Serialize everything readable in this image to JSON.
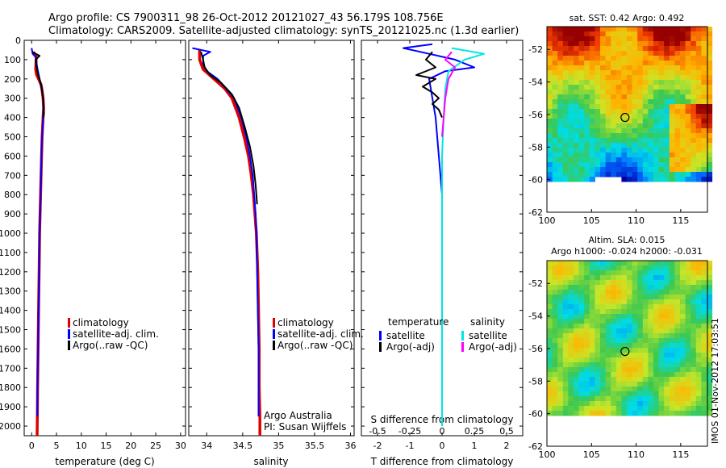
{
  "figure": {
    "title_line1": "Argo profile: CS 7900311_98 26-Oct-2012 20121027_43 56.179S 108.756E",
    "title_line2": "Climatology: CARS2009. Satellite-adjusted climatology: synTS_20121025.nc (1.3d earlier)",
    "vertical_stamp": "IMOS 01-Nov-2012 17:03:51",
    "colors": {
      "climatology": "#e00000",
      "satellite": "#0000ff",
      "argo": "#000000",
      "salinity_satellite": "#00e5e5",
      "salinity_argo": "#ff00ff"
    }
  },
  "chart_data": [
    {
      "id": "temperature",
      "type": "line",
      "xlabel": "temperature (deg C)",
      "ylabel": "",
      "xlim": [
        -1.5,
        31
      ],
      "ylim": [
        2050,
        0
      ],
      "xticks": [
        0,
        5,
        10,
        15,
        20,
        25,
        30
      ],
      "yticks": [
        0,
        100,
        200,
        300,
        400,
        500,
        600,
        700,
        800,
        900,
        1000,
        1100,
        1200,
        1300,
        1400,
        1500,
        1600,
        1700,
        1800,
        1900,
        2000
      ],
      "legend": {
        "position": "lower-right",
        "entries": [
          "climatology",
          "satellite-adj. clim.",
          "Argo(..raw -QC)"
        ]
      },
      "series": [
        {
          "name": "climatology",
          "color": "#e00000",
          "points": [
            [
              0.3,
              60
            ],
            [
              0.9,
              80
            ],
            [
              0.9,
              100
            ],
            [
              0.8,
              150
            ],
            [
              1.0,
              180
            ],
            [
              1.4,
              200
            ],
            [
              1.9,
              230
            ],
            [
              2.1,
              260
            ],
            [
              2.3,
              300
            ],
            [
              2.4,
              350
            ],
            [
              2.3,
              400
            ],
            [
              2.1,
              500
            ],
            [
              2.0,
              600
            ],
            [
              1.9,
              700
            ],
            [
              1.8,
              800
            ],
            [
              1.7,
              900
            ],
            [
              1.6,
              1000
            ],
            [
              1.5,
              1200
            ],
            [
              1.4,
              1400
            ],
            [
              1.3,
              1600
            ],
            [
              1.2,
              1800
            ],
            [
              1.15,
              1950
            ],
            [
              1.1,
              2050
            ]
          ]
        },
        {
          "name": "satellite-adj. clim.",
          "color": "#0000ff",
          "points": [
            [
              0.0,
              40
            ],
            [
              0.2,
              70
            ],
            [
              0.9,
              90
            ],
            [
              1.0,
              120
            ],
            [
              1.2,
              150
            ],
            [
              1.6,
              200
            ],
            [
              2.0,
              250
            ],
            [
              2.3,
              300
            ],
            [
              2.4,
              350
            ],
            [
              2.3,
              400
            ],
            [
              2.1,
              500
            ],
            [
              2.0,
              600
            ],
            [
              1.9,
              700
            ],
            [
              1.8,
              800
            ],
            [
              1.7,
              900
            ],
            [
              1.6,
              1000
            ],
            [
              1.5,
              1200
            ],
            [
              1.4,
              1400
            ],
            [
              1.3,
              1600
            ],
            [
              1.2,
              1800
            ],
            [
              1.15,
              1950
            ]
          ]
        },
        {
          "name": "Argo(..raw -QC)",
          "color": "#000000",
          "points": [
            [
              0.1,
              60
            ],
            [
              1.6,
              80
            ],
            [
              0.8,
              100
            ],
            [
              1.0,
              140
            ],
            [
              1.3,
              180
            ],
            [
              1.7,
              210
            ],
            [
              2.0,
              240
            ],
            [
              2.2,
              280
            ],
            [
              2.4,
              320
            ],
            [
              2.5,
              380
            ],
            [
              2.3,
              400
            ]
          ]
        }
      ]
    },
    {
      "id": "salinity",
      "type": "line",
      "xlabel": "salinity",
      "ylabel": "",
      "xlim": [
        33.75,
        36.05
      ],
      "ylim": [
        2050,
        0
      ],
      "xticks": [
        34,
        34.5,
        35,
        35.5,
        36
      ],
      "xticklabels": [
        "34",
        "34.5",
        "35",
        "35.5",
        "36"
      ],
      "legend": {
        "position": "lower-right",
        "entries": [
          "climatology",
          "satellite-adj. clim.",
          "Argo(..raw -QC)"
        ]
      },
      "annotations": [
        "Argo Australia",
        "PI: Susan Wijffels"
      ],
      "series": [
        {
          "name": "climatology",
          "color": "#e00000",
          "points": [
            [
              33.9,
              50
            ],
            [
              33.9,
              100
            ],
            [
              33.95,
              150
            ],
            [
              34.1,
              200
            ],
            [
              34.25,
              250
            ],
            [
              34.35,
              300
            ],
            [
              34.45,
              400
            ],
            [
              34.52,
              500
            ],
            [
              34.58,
              600
            ],
            [
              34.62,
              700
            ],
            [
              34.65,
              800
            ],
            [
              34.67,
              900
            ],
            [
              34.69,
              1000
            ],
            [
              34.71,
              1200
            ],
            [
              34.72,
              1400
            ],
            [
              34.73,
              1600
            ],
            [
              34.73,
              1800
            ],
            [
              34.74,
              1950
            ],
            [
              34.74,
              2050
            ]
          ]
        },
        {
          "name": "satellite-adj. clim.",
          "color": "#0000ff",
          "points": [
            [
              33.8,
              40
            ],
            [
              34.05,
              60
            ],
            [
              33.95,
              80
            ],
            [
              33.95,
              120
            ],
            [
              34.0,
              160
            ],
            [
              34.15,
              200
            ],
            [
              34.27,
              250
            ],
            [
              34.38,
              300
            ],
            [
              34.48,
              400
            ],
            [
              34.55,
              500
            ],
            [
              34.6,
              600
            ],
            [
              34.64,
              700
            ],
            [
              34.66,
              800
            ],
            [
              34.68,
              900
            ],
            [
              34.69,
              1000
            ],
            [
              34.7,
              1200
            ],
            [
              34.71,
              1400
            ],
            [
              34.72,
              1600
            ],
            [
              34.72,
              1800
            ],
            [
              34.72,
              1950
            ]
          ]
        },
        {
          "name": "Argo(..raw -QC)",
          "color": "#000000",
          "points": [
            [
              33.92,
              60
            ],
            [
              33.95,
              100
            ],
            [
              33.97,
              140
            ],
            [
              34.05,
              180
            ],
            [
              34.2,
              220
            ],
            [
              34.35,
              280
            ],
            [
              34.45,
              350
            ],
            [
              34.53,
              450
            ],
            [
              34.6,
              550
            ],
            [
              34.65,
              650
            ],
            [
              34.68,
              750
            ],
            [
              34.7,
              850
            ]
          ]
        }
      ]
    },
    {
      "id": "differences",
      "type": "line",
      "xlabel": "T difference from climatology",
      "top_axis_label": "S difference from climatology",
      "ylabel": "",
      "xlim": [
        -2.5,
        2.5
      ],
      "ylim": [
        2050,
        0
      ],
      "xticks": [
        -2,
        -1,
        0,
        1,
        2
      ],
      "top_xticklabels": [
        "-0.5",
        "-0.25",
        "0",
        "0.25",
        "0.5"
      ],
      "legend": {
        "position": "lower",
        "groups": [
          {
            "title": "temperature",
            "entries": [
              "satellite",
              "Argo(-adj)"
            ]
          },
          {
            "title": "salinity",
            "entries": [
              "satellite",
              "Argo(-adj)"
            ]
          }
        ]
      },
      "series": [
        {
          "name": "temperature satellite",
          "color": "#0000ff",
          "points": [
            [
              -0.3,
              20
            ],
            [
              -1.2,
              40
            ],
            [
              -0.4,
              70
            ],
            [
              0.4,
              100
            ],
            [
              1.0,
              140
            ],
            [
              0.1,
              160
            ],
            [
              -0.4,
              200
            ],
            [
              -0.3,
              300
            ],
            [
              -0.2,
              400
            ],
            [
              -0.1,
              600
            ],
            [
              0.0,
              800
            ],
            [
              0.0,
              1200
            ],
            [
              0.0,
              1600
            ],
            [
              0.0,
              2000
            ]
          ]
        },
        {
          "name": "temperature Argo(-adj)",
          "color": "#000000",
          "points": [
            [
              -0.3,
              60
            ],
            [
              -0.5,
              100
            ],
            [
              -0.2,
              140
            ],
            [
              -0.8,
              180
            ],
            [
              -0.2,
              200
            ],
            [
              -0.6,
              240
            ],
            [
              -0.3,
              270
            ],
            [
              -0.1,
              300
            ],
            [
              -0.3,
              330
            ],
            [
              -0.1,
              360
            ],
            [
              0.0,
              400
            ]
          ]
        },
        {
          "name": "salinity satellite",
          "color": "#00e5e5",
          "points": [
            [
              0.3,
              40
            ],
            [
              1.3,
              70
            ],
            [
              0.7,
              100
            ],
            [
              0.2,
              160
            ],
            [
              0.1,
              250
            ],
            [
              0.05,
              400
            ],
            [
              0.0,
              600
            ],
            [
              0.0,
              1000
            ],
            [
              0.0,
              1500
            ],
            [
              0.0,
              2000
            ]
          ]
        },
        {
          "name": "salinity Argo(-adj)",
          "color": "#ff00ff",
          "points": [
            [
              0.3,
              60
            ],
            [
              0.1,
              100
            ],
            [
              0.4,
              140
            ],
            [
              0.2,
              200
            ],
            [
              0.1,
              300
            ],
            [
              0.05,
              400
            ],
            [
              0.0,
              500
            ]
          ]
        }
      ]
    },
    {
      "id": "sst_map",
      "type": "heatmap",
      "title": "sat. SST: 0.42 Argo: 0.492",
      "xlim": [
        100,
        118
      ],
      "ylim": [
        -62,
        -50.6
      ],
      "xticks": [
        100,
        105,
        110,
        115
      ],
      "yticks": [
        -52,
        -54,
        -56,
        -58,
        -60,
        -62
      ],
      "marker": {
        "lon": 108.756,
        "lat": -56.179,
        "shape": "circle"
      }
    },
    {
      "id": "sla_map",
      "type": "heatmap",
      "title": "Altim. SLA: 0.015",
      "subtitle": "Argo h1000: -0.024 h2000: -0.031",
      "xlim": [
        100,
        118
      ],
      "ylim": [
        -62,
        -50.6
      ],
      "xticks": [
        100,
        105,
        110,
        115
      ],
      "yticks": [
        -52,
        -54,
        -56,
        -58,
        -60,
        -62
      ],
      "marker": {
        "lon": 108.756,
        "lat": -56.179,
        "shape": "circle"
      }
    }
  ]
}
